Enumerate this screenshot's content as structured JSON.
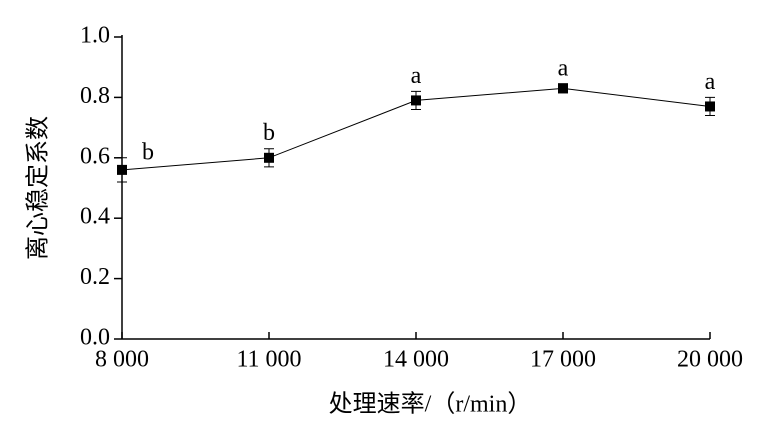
{
  "chart_data": {
    "type": "line",
    "x_label": "处理速率/（r/min）",
    "y_label": "离心稳定系数",
    "x": [
      8000,
      11000,
      14000,
      17000,
      20000
    ],
    "values": [
      0.56,
      0.6,
      0.79,
      0.83,
      0.77
    ],
    "errors": [
      0.04,
      0.03,
      0.03,
      0.015,
      0.03
    ],
    "labels": [
      "b",
      "b",
      "a",
      "a",
      "a"
    ],
    "color": "#000000",
    "xlim": [
      8000,
      20000
    ],
    "xticks": [
      {
        "value": 8000,
        "label": "8 000"
      },
      {
        "value": 11000,
        "label": "11 000"
      },
      {
        "value": 14000,
        "label": "14 000"
      },
      {
        "value": 17000,
        "label": "17 000"
      },
      {
        "value": 20000,
        "label": "20 000"
      }
    ],
    "ylim": [
      0,
      1
    ],
    "yticks": [
      {
        "value": 0,
        "label": "0.0"
      },
      0.2,
      0.4,
      0.6,
      0.8,
      {
        "value": 1,
        "label": "1.0"
      }
    ]
  }
}
